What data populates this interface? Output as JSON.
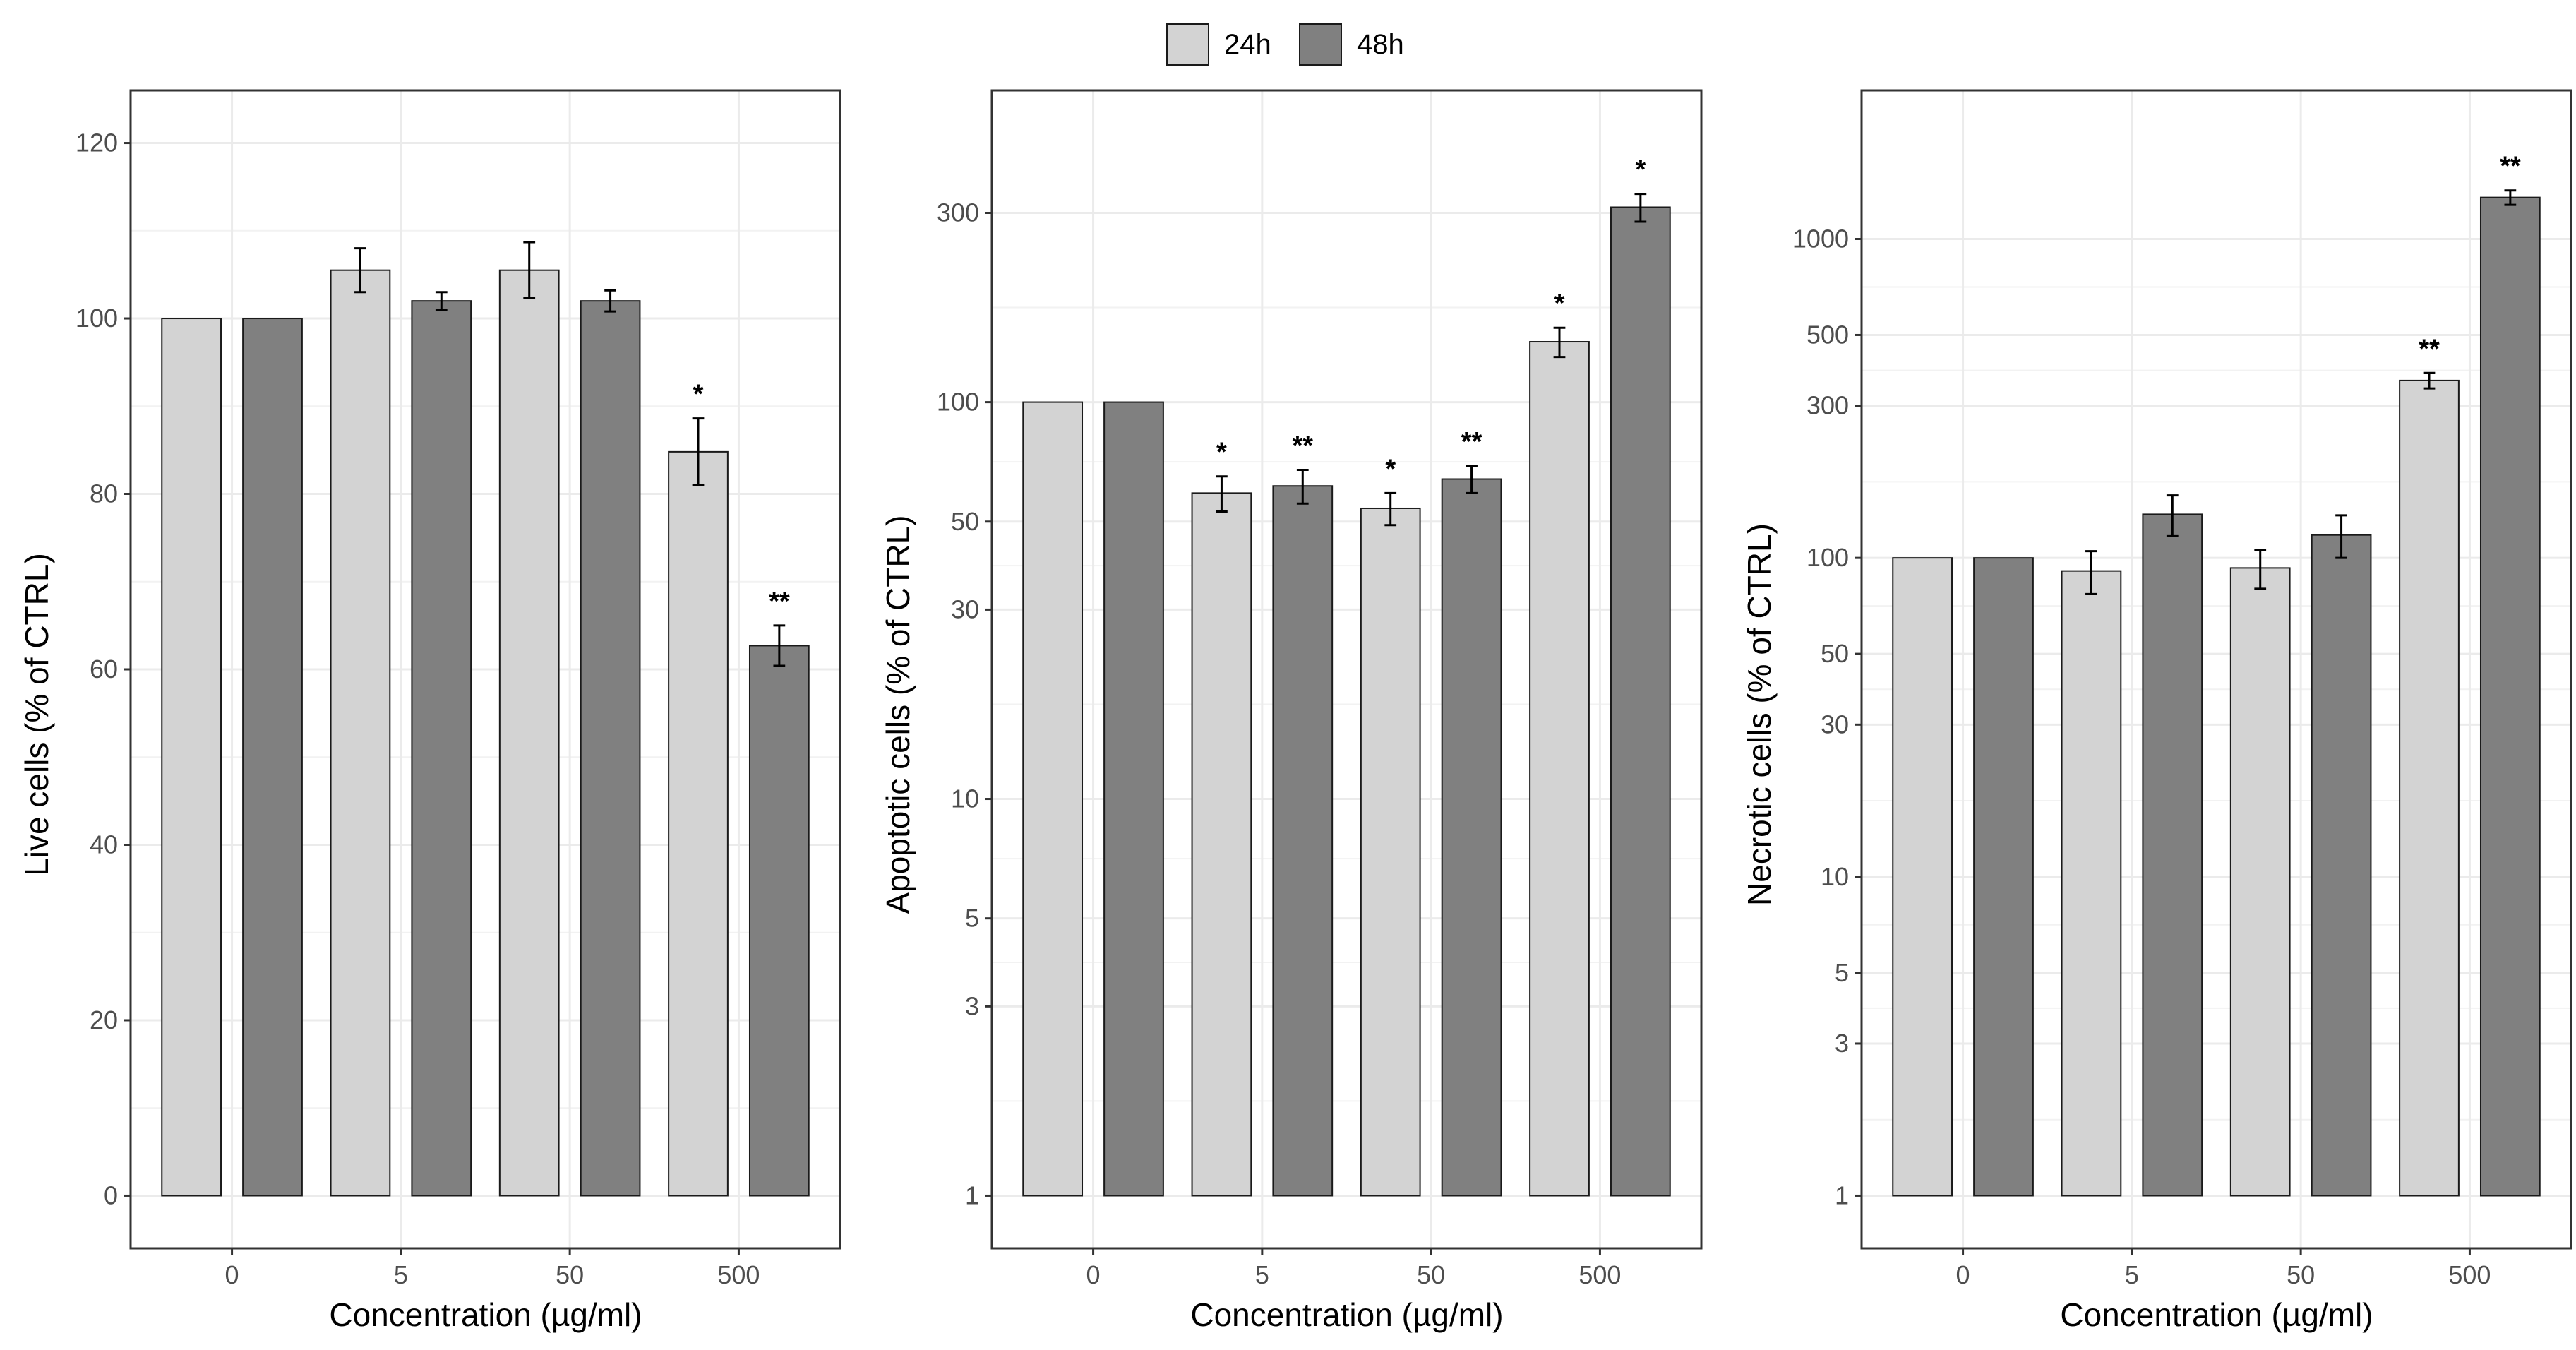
{
  "legend": {
    "items": [
      {
        "label": "24h",
        "color": "#d3d3d3"
      },
      {
        "label": "48h",
        "color": "#808080"
      }
    ]
  },
  "chart_data": [
    {
      "type": "bar",
      "scale": "linear",
      "title": "",
      "xlabel": "Concentration (µg/ml)",
      "ylabel": "Live cells (% of CTRL)",
      "categories": [
        "0",
        "5",
        "50",
        "500"
      ],
      "ylim": [
        0,
        120
      ],
      "yticks": [
        0,
        20,
        40,
        60,
        80,
        100,
        120
      ],
      "ytick_labels": [
        "0",
        "20",
        "40",
        "60",
        "80",
        "100",
        "120"
      ],
      "series": [
        {
          "name": "24h",
          "values": [
            100,
            105.5,
            105.5,
            84.8
          ],
          "errors": [
            0,
            2.5,
            3.2,
            3.8
          ],
          "significance": [
            "",
            "",
            "",
            "*"
          ]
        },
        {
          "name": "48h",
          "values": [
            100,
            102,
            102,
            62.7
          ],
          "errors": [
            0,
            1,
            1.2,
            2.3
          ],
          "significance": [
            "",
            "",
            "",
            "**"
          ]
        }
      ]
    },
    {
      "type": "bar",
      "scale": "log",
      "title": "",
      "xlabel": "Concentration (µg/ml)",
      "ylabel": "Apoptotic cells (% of CTRL)",
      "categories": [
        "0",
        "5",
        "50",
        "500"
      ],
      "ylim": [
        1,
        450
      ],
      "yticks": [
        1,
        3,
        5,
        10,
        30,
        50,
        100,
        300
      ],
      "ytick_labels": [
        "1",
        "3",
        "5",
        "10",
        "30",
        "50",
        "100",
        "300"
      ],
      "series": [
        {
          "name": "24h",
          "values": [
            100,
            59,
            54,
            142
          ],
          "errors": [
            0,
            6,
            5,
            12
          ],
          "significance": [
            "",
            "*",
            "*",
            "*"
          ]
        },
        {
          "name": "48h",
          "values": [
            100,
            61.5,
            64,
            310
          ],
          "errors": [
            0,
            6,
            5,
            25
          ],
          "significance": [
            "",
            "**",
            "**",
            "*"
          ]
        }
      ]
    },
    {
      "type": "bar",
      "scale": "log",
      "title": "",
      "xlabel": "Concentration (µg/ml)",
      "ylabel": "Necrotic cells (% of CTRL)",
      "categories": [
        "0",
        "5",
        "50",
        "500"
      ],
      "ylim": [
        1,
        2000
      ],
      "yticks": [
        1,
        3,
        5,
        10,
        30,
        50,
        100,
        300,
        500,
        1000
      ],
      "ytick_labels": [
        "1",
        "3",
        "5",
        "10",
        "30",
        "50",
        "100",
        "300",
        "500",
        "1000"
      ],
      "series": [
        {
          "name": "24h",
          "values": [
            100,
            91,
            93,
            360
          ],
          "errors": [
            0,
            14,
            13,
            20
          ],
          "significance": [
            "",
            "",
            "",
            "**"
          ]
        },
        {
          "name": "48h",
          "values": [
            100,
            137,
            118,
            1350
          ],
          "errors": [
            0,
            20,
            18,
            70
          ],
          "significance": [
            "",
            "",
            "",
            "**"
          ]
        }
      ]
    }
  ]
}
